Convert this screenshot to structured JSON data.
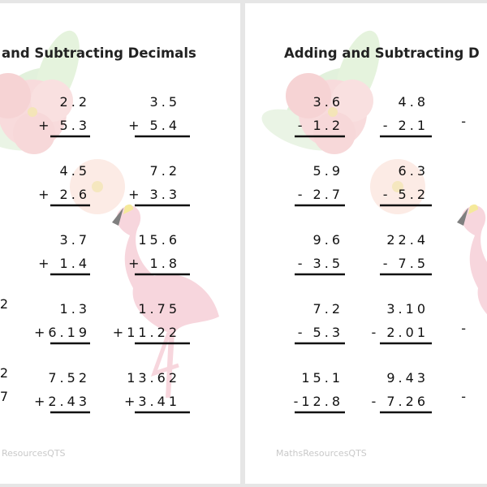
{
  "pages": [
    {
      "title": "and Subtracting Decimals",
      "problems": [
        {
          "top": "2.2",
          "bottom": "+ 5.3"
        },
        {
          "top": "3.5",
          "bottom": "+ 5.4"
        },
        {
          "top": "4.5",
          "bottom": "+ 2.6"
        },
        {
          "top": "7.2",
          "bottom": "+ 3.3"
        },
        {
          "top": "3.7",
          "bottom": "+ 1.4"
        },
        {
          "top": "15.6",
          "bottom": "+ 1.8"
        },
        {
          "top": "1.3",
          "bottom": "+6.19"
        },
        {
          "top": "1.75",
          "bottom": "+11.22"
        },
        {
          "top": "7.52",
          "bottom": "+2.43"
        },
        {
          "top": "13.62",
          "bottom": "+3.41"
        }
      ],
      "partials": [
        "2",
        "2",
        "7"
      ],
      "watermark": "ResourcesQTS"
    },
    {
      "title": "Adding and Subtracting D",
      "problems": [
        {
          "top": "3.6",
          "bottom": "- 1.2"
        },
        {
          "top": "4.8",
          "bottom": "- 2.1"
        },
        {
          "top": "5.9",
          "bottom": "- 2.7"
        },
        {
          "top": "6.3",
          "bottom": "- 5.2"
        },
        {
          "top": "9.6",
          "bottom": "- 3.5"
        },
        {
          "top": "22.4",
          "bottom": "- 7.5"
        },
        {
          "top": "7.2",
          "bottom": "- 5.3"
        },
        {
          "top": "3.10",
          "bottom": "- 2.01"
        },
        {
          "top": "15.1",
          "bottom": "-12.8"
        },
        {
          "top": "9.43",
          "bottom": "- 7.26"
        }
      ],
      "partials": [
        "-",
        "-",
        "-"
      ],
      "watermark": "MathsResourcesQTS"
    }
  ]
}
